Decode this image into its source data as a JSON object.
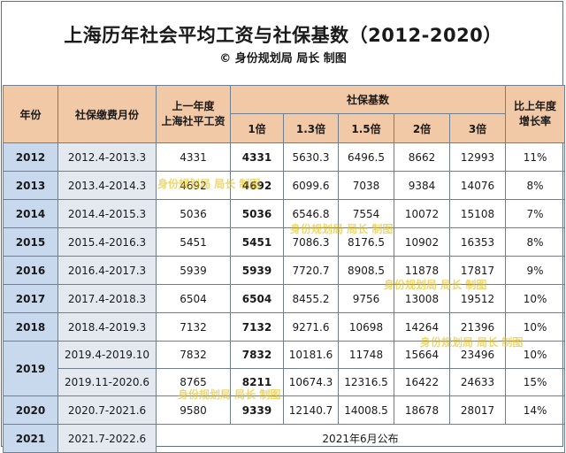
{
  "title": "上海历年社会平均工资与社保基数（2012-2020）",
  "subtitle": "© 身份规划局 局长 制图",
  "headers": {
    "year": "年份",
    "period": "社保缴费月份",
    "prev_avg_line1": "上一年度",
    "prev_avg_line2": "上海社平工资",
    "base_group": "社保基数",
    "m1": "1倍",
    "m13": "1.3倍",
    "m15": "1.5倍",
    "m2": "2倍",
    "m3": "3倍",
    "growth_line1": "比上年度",
    "growth_line2": "增长率"
  },
  "rows": [
    {
      "year": "2012",
      "period": "2012.4-2013.3",
      "avg": "4331",
      "b1": "4331",
      "b13": "5630.3",
      "b15": "6496.5",
      "b2": "8662",
      "b3": "12993",
      "growth": "11%"
    },
    {
      "year": "2013",
      "period": "2013.4-2014.3",
      "avg": "4692",
      "b1": "4692",
      "b13": "6099.6",
      "b15": "7038",
      "b2": "9384",
      "b3": "14076",
      "growth": "8%"
    },
    {
      "year": "2014",
      "period": "2014.4-2015.3",
      "avg": "5036",
      "b1": "5036",
      "b13": "6546.8",
      "b15": "7554",
      "b2": "10072",
      "b3": "15108",
      "growth": "7%"
    },
    {
      "year": "2015",
      "period": "2015.4-2016.3",
      "avg": "5451",
      "b1": "5451",
      "b13": "7086.3",
      "b15": "8176.5",
      "b2": "10902",
      "b3": "16353",
      "growth": "8%"
    },
    {
      "year": "2016",
      "period": "2016.4-2017.3",
      "avg": "5939",
      "b1": "5939",
      "b13": "7720.7",
      "b15": "8908.5",
      "b2": "11878",
      "b3": "17817",
      "growth": "9%"
    },
    {
      "year": "2017",
      "period": "2017.4-2018.3",
      "avg": "6504",
      "b1": "6504",
      "b13": "8455.2",
      "b15": "9756",
      "b2": "13008",
      "b3": "19512",
      "growth": "10%"
    },
    {
      "year": "2018",
      "period": "2018.4-2019.3",
      "avg": "7132",
      "b1": "7132",
      "b13": "9271.6",
      "b15": "10698",
      "b2": "14264",
      "b3": "21396",
      "growth": "10%"
    }
  ],
  "row2019": {
    "year": "2019",
    "a": {
      "period": "2019.4-2019.10",
      "avg": "7832",
      "b1": "7832",
      "b13": "10181.6",
      "b15": "11748",
      "b2": "15664",
      "b3": "23496",
      "growth": "10%"
    },
    "b": {
      "period": "2019.11-2020.6",
      "avg": "8765",
      "b1": "8211",
      "b13": "10674.3",
      "b15": "12316.5",
      "b2": "16422",
      "b3": "24633",
      "growth": "15%"
    }
  },
  "row2020": {
    "year": "2020",
    "period": "2020.7-2021.6",
    "avg": "9580",
    "b1": "9339",
    "b13": "12140.7",
    "b15": "14008.5",
    "b2": "18678",
    "b3": "28017",
    "growth": "14%"
  },
  "row2021": {
    "year": "2021",
    "period": "2021.7-2022.6",
    "note": "2021年6月公布"
  },
  "watermark": "身份规划局 局长 制图",
  "colors": {
    "header_bg": "#f2c9a7",
    "year_bg": "#c8d9ee",
    "period_bg": "#e4e9f0",
    "highlight_red": "#d01818",
    "watermark": "#e1be14"
  }
}
